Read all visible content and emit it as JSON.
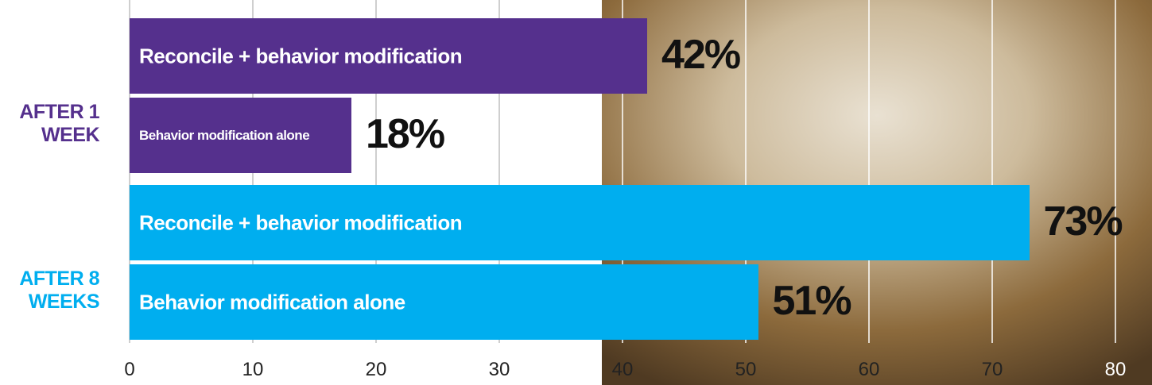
{
  "chart_data": {
    "type": "bar",
    "orientation": "horizontal",
    "xlim": [
      0,
      80
    ],
    "xticks": [
      0,
      10,
      20,
      30,
      40,
      50,
      60,
      70,
      80
    ],
    "grid": true,
    "series": [
      {
        "name": "AFTER 1 WEEK",
        "color": "#55308d",
        "categories": [
          "Reconcile + behavior modification",
          "Behavior modification alone"
        ],
        "values": [
          42,
          18
        ],
        "value_labels": [
          "42%",
          "18%"
        ]
      },
      {
        "name": "AFTER 8 WEEKS",
        "color": "#00aeef",
        "categories": [
          "Reconcile + behavior modification",
          "Behavior modification alone"
        ],
        "values": [
          73,
          51
        ],
        "value_labels": [
          "73%",
          "51%"
        ]
      }
    ]
  }
}
